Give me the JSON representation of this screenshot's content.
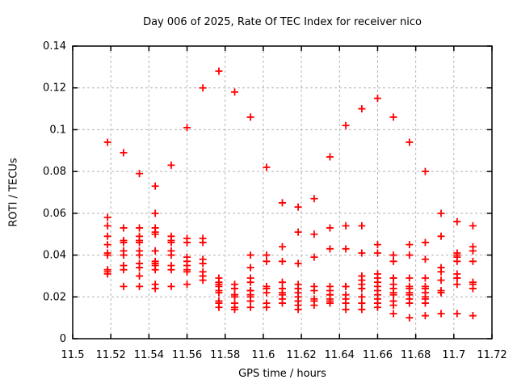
{
  "chart_data": {
    "type": "scatter",
    "title": "Day 006 of 2025, Rate Of TEC Index for receiver nico",
    "xlabel": "GPS time / hours",
    "ylabel": "ROTI / TECUs",
    "xlim": [
      11.5,
      11.72
    ],
    "ylim": [
      0,
      0.14
    ],
    "grid": true,
    "legend": "none",
    "background_color": "#ffffff",
    "axis_color": "#000000",
    "grid_color": "#b4b4b4",
    "xticks": [
      {
        "v": 11.5,
        "label": "11.5"
      },
      {
        "v": 11.52,
        "label": "11.52"
      },
      {
        "v": 11.54,
        "label": "11.54"
      },
      {
        "v": 11.56,
        "label": "11.56"
      },
      {
        "v": 11.58,
        "label": "11.58"
      },
      {
        "v": 11.6,
        "label": "11.6"
      },
      {
        "v": 11.62,
        "label": "11.62"
      },
      {
        "v": 11.64,
        "label": "11.64"
      },
      {
        "v": 11.66,
        "label": "11.66"
      },
      {
        "v": 11.68,
        "label": "11.68"
      },
      {
        "v": 11.7,
        "label": "11.7"
      },
      {
        "v": 11.72,
        "label": "11.72"
      }
    ],
    "yticks": [
      {
        "v": 0,
        "label": "0"
      },
      {
        "v": 0.02,
        "label": "0.02"
      },
      {
        "v": 0.04,
        "label": "0.04"
      },
      {
        "v": 0.06,
        "label": "0.06"
      },
      {
        "v": 0.08,
        "label": "0.08"
      },
      {
        "v": 0.1,
        "label": "0.1"
      },
      {
        "v": 0.12,
        "label": "0.12"
      },
      {
        "v": 0.14,
        "label": "0.14"
      }
    ],
    "series": [
      {
        "name": "ROTI",
        "marker": "plus",
        "color": "#ff0000",
        "columns": [
          {
            "t": 11.5183,
            "values": [
              0.094,
              0.058,
              0.054,
              0.049,
              0.045,
              0.041,
              0.04,
              0.033,
              0.032,
              0.031
            ]
          },
          {
            "t": 11.5267,
            "values": [
              0.089,
              0.053,
              0.047,
              0.046,
              0.042,
              0.04,
              0.035,
              0.033,
              0.025
            ]
          },
          {
            "t": 11.535,
            "values": [
              0.079,
              0.053,
              0.049,
              0.047,
              0.046,
              0.042,
              0.04,
              0.036,
              0.034,
              0.03,
              0.025
            ]
          },
          {
            "t": 11.5433,
            "values": [
              0.073,
              0.06,
              0.053,
              0.051,
              0.05,
              0.042,
              0.037,
              0.036,
              0.035,
              0.033,
              0.026,
              0.024
            ]
          },
          {
            "t": 11.5517,
            "values": [
              0.083,
              0.049,
              0.047,
              0.046,
              0.042,
              0.04,
              0.035,
              0.033,
              0.025
            ]
          },
          {
            "t": 11.56,
            "values": [
              0.101,
              0.048,
              0.046,
              0.039,
              0.037,
              0.035,
              0.033,
              0.032,
              0.026
            ]
          },
          {
            "t": 11.5683,
            "values": [
              0.12,
              0.048,
              0.046,
              0.038,
              0.036,
              0.032,
              0.03,
              0.028
            ]
          },
          {
            "t": 11.5767,
            "values": [
              0.128,
              0.029,
              0.027,
              0.026,
              0.025,
              0.023,
              0.022,
              0.018,
              0.017,
              0.015
            ]
          },
          {
            "t": 11.585,
            "values": [
              0.118,
              0.026,
              0.024,
              0.021,
              0.021,
              0.02,
              0.017,
              0.015,
              0.014
            ]
          },
          {
            "t": 11.5933,
            "values": [
              0.106,
              0.04,
              0.034,
              0.029,
              0.027,
              0.023,
              0.023,
              0.021,
              0.02,
              0.018,
              0.015
            ]
          },
          {
            "t": 11.6017,
            "values": [
              0.082,
              0.04,
              0.037,
              0.025,
              0.024,
              0.022,
              0.017,
              0.015
            ]
          },
          {
            "t": 11.61,
            "values": [
              0.065,
              0.044,
              0.037,
              0.027,
              0.024,
              0.022,
              0.021,
              0.019,
              0.017
            ]
          },
          {
            "t": 11.6183,
            "values": [
              0.063,
              0.051,
              0.036,
              0.026,
              0.024,
              0.022,
              0.02,
              0.018,
              0.016,
              0.014
            ]
          },
          {
            "t": 11.6267,
            "values": [
              0.067,
              0.05,
              0.039,
              0.025,
              0.023,
              0.019,
              0.018,
              0.016
            ]
          },
          {
            "t": 11.635,
            "values": [
              0.087,
              0.053,
              0.043,
              0.025,
              0.023,
              0.021,
              0.021,
              0.019,
              0.018,
              0.017
            ]
          },
          {
            "t": 11.6433,
            "values": [
              0.102,
              0.054,
              0.043,
              0.025,
              0.025,
              0.021,
              0.019,
              0.017,
              0.014
            ]
          },
          {
            "t": 11.6517,
            "values": [
              0.11,
              0.054,
              0.041,
              0.03,
              0.028,
              0.026,
              0.024,
              0.02,
              0.017,
              0.014
            ]
          },
          {
            "t": 11.66,
            "values": [
              0.115,
              0.045,
              0.041,
              0.031,
              0.029,
              0.027,
              0.025,
              0.023,
              0.021,
              0.019,
              0.017,
              0.015
            ]
          },
          {
            "t": 11.6683,
            "values": [
              0.106,
              0.04,
              0.037,
              0.029,
              0.029,
              0.026,
              0.024,
              0.022,
              0.021,
              0.018,
              0.016,
              0.012
            ]
          },
          {
            "t": 11.6767,
            "values": [
              0.094,
              0.045,
              0.04,
              0.029,
              0.025,
              0.024,
              0.022,
              0.021,
              0.019,
              0.017,
              0.01
            ]
          },
          {
            "t": 11.685,
            "values": [
              0.08,
              0.046,
              0.038,
              0.029,
              0.025,
              0.024,
              0.022,
              0.02,
              0.019,
              0.017,
              0.011
            ]
          },
          {
            "t": 11.6933,
            "values": [
              0.06,
              0.049,
              0.034,
              0.032,
              0.028,
              0.023,
              0.022,
              0.022,
              0.012
            ]
          },
          {
            "t": 11.7017,
            "values": [
              0.056,
              0.041,
              0.04,
              0.039,
              0.037,
              0.031,
              0.029,
              0.029,
              0.026,
              0.012
            ]
          },
          {
            "t": 11.71,
            "values": [
              0.054,
              0.044,
              0.042,
              0.037,
              0.027,
              0.026,
              0.024,
              0.011
            ]
          }
        ]
      }
    ]
  }
}
